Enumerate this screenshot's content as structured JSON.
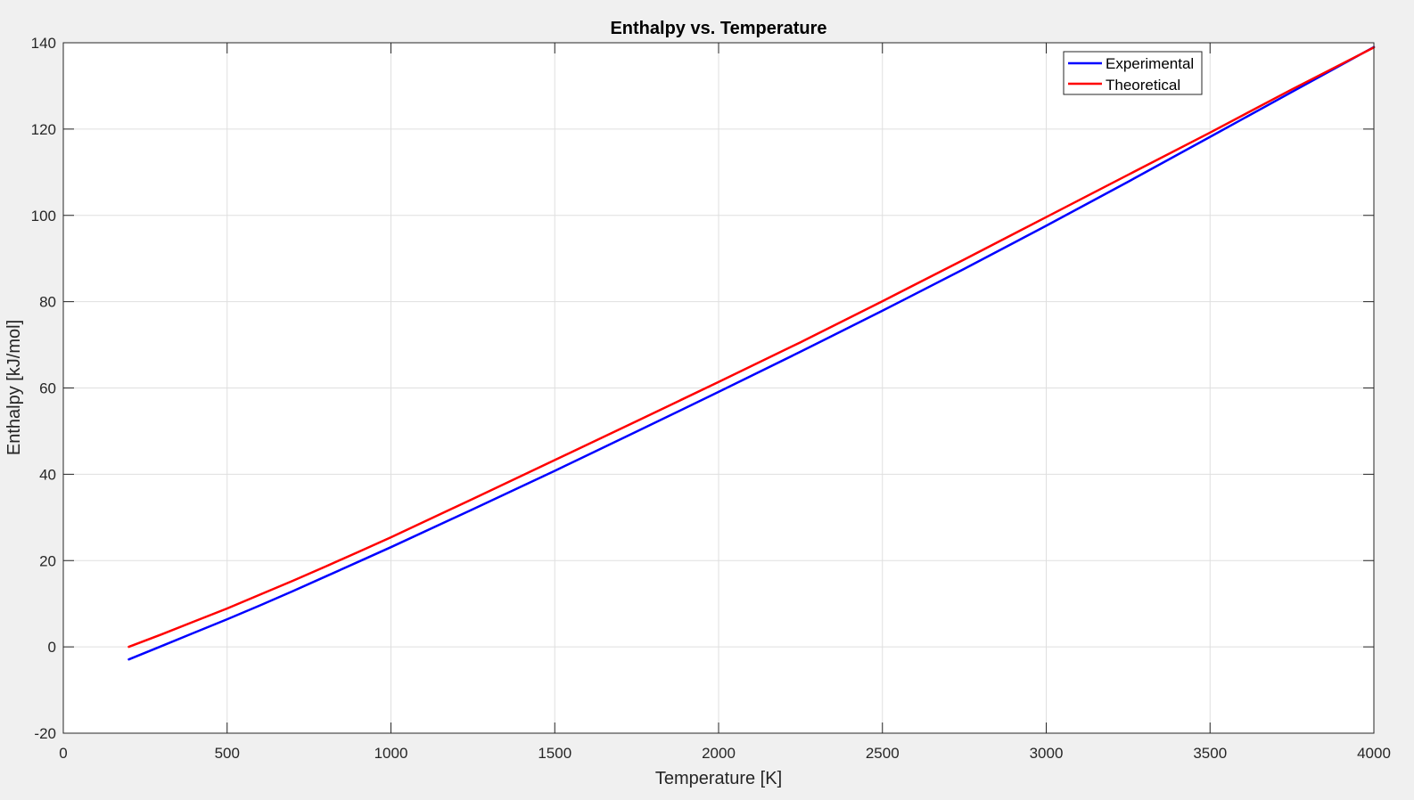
{
  "figure": {
    "background": "#f0f0f0",
    "axes_background": "#ffffff"
  },
  "chart_data": {
    "type": "line",
    "title": "Enthalpy vs. Temperature",
    "xlabel": "Temperature [K]",
    "ylabel": "Enthalpy [kJ/mol]",
    "xlim": [
      0,
      4000
    ],
    "ylim": [
      -20,
      140
    ],
    "xticks": [
      0,
      500,
      1000,
      1500,
      2000,
      2500,
      3000,
      3500,
      4000
    ],
    "yticks": [
      -20,
      0,
      20,
      40,
      60,
      80,
      100,
      120,
      140
    ],
    "grid": true,
    "legend_position": "top-right",
    "series": [
      {
        "name": "Experimental",
        "color": "#0000ff",
        "x": [
          200,
          300,
          400,
          500,
          600,
          700,
          800,
          900,
          1000,
          1250,
          1500,
          1750,
          2000,
          2250,
          2500,
          2750,
          3000,
          3250,
          3500,
          3750,
          4000
        ],
        "y": [
          -2.9,
          0.2,
          3.3,
          6.4,
          9.6,
          12.9,
          16.3,
          19.7,
          23.1,
          31.9,
          40.8,
          49.9,
          59.1,
          68.4,
          77.9,
          87.6,
          97.6,
          107.8,
          118.2,
          128.6,
          139.0
        ]
      },
      {
        "name": "Theoretical",
        "color": "#ff0000",
        "x": [
          200,
          300,
          400,
          500,
          600,
          700,
          800,
          900,
          1000,
          1250,
          1500,
          1750,
          2000,
          2250,
          2500,
          2750,
          3000,
          3250,
          3500,
          3750,
          4000
        ],
        "y": [
          0.0,
          2.9,
          5.9,
          8.9,
          12.1,
          15.3,
          18.6,
          22.0,
          25.4,
          34.3,
          43.3,
          52.3,
          61.4,
          70.6,
          80.1,
          89.8,
          99.6,
          109.4,
          119.2,
          129.2,
          138.9
        ]
      }
    ]
  }
}
